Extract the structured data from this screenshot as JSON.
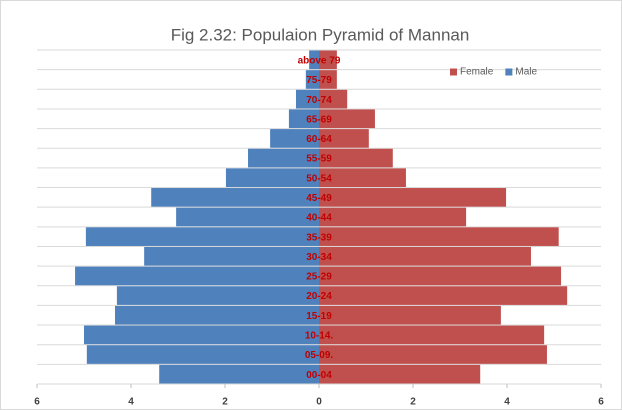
{
  "chart_data": {
    "type": "pyramid",
    "title": "Fig 2.32: Populaion Pyramid of Mannan",
    "categories": [
      "00-04",
      "05-09.",
      "10-14.",
      "15-19",
      "20-24",
      "25-29",
      "30-34",
      "35-39",
      "40-44",
      "45-49",
      "50-54",
      "55-59",
      "60-64",
      "65-69",
      "70-74",
      "75-79",
      "above 79"
    ],
    "series": [
      {
        "name": "Female",
        "color": "#c0504d",
        "values": [
          3.43,
          4.85,
          4.79,
          3.87,
          5.28,
          5.15,
          4.51,
          5.1,
          3.13,
          3.98,
          1.85,
          1.57,
          1.06,
          1.19,
          0.6,
          0.38,
          0.38
        ]
      },
      {
        "name": "Male",
        "color": "#4f81bd",
        "values": [
          -3.4,
          -4.94,
          -5.0,
          -4.34,
          -4.3,
          -5.19,
          -3.72,
          -4.96,
          -3.04,
          -3.57,
          -1.98,
          -1.51,
          -1.04,
          -0.64,
          -0.49,
          -0.28,
          -0.21
        ]
      }
    ],
    "xlim": [
      -6,
      6
    ],
    "xticks": [
      {
        "value": -6,
        "label": "6"
      },
      {
        "value": -4,
        "label": "4"
      },
      {
        "value": -2,
        "label": "2"
      },
      0,
      2,
      4,
      6
    ],
    "legend": "top-right",
    "grid": true
  }
}
